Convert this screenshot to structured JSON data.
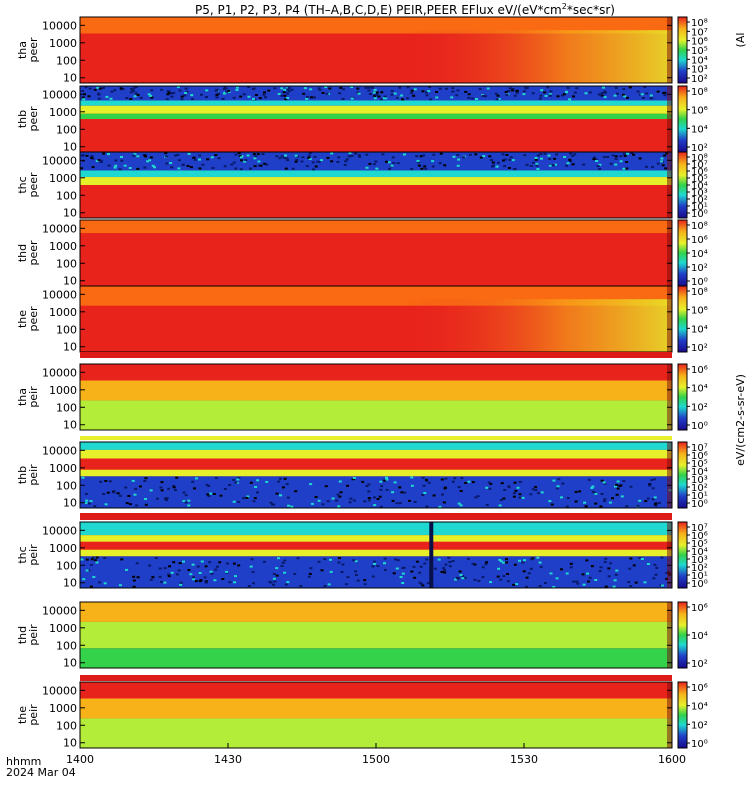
{
  "title_parts": [
    "P5, P1, P2, P3, P4 (TH–A,B,C,D,E) PEIR,PEER EFlux eV/(eV*cm",
    "2",
    "*sec*sr)"
  ],
  "footer": {
    "time_label": "hhmm",
    "date_label": "2024 Mar 04"
  },
  "chart_data": {
    "type": "heatmap",
    "title": "P5, P1, P2, P3, P4 (TH–A,B,C,D,E) PEIR,PEER EFlux eV/(eV*cm2*sec*sr)",
    "x_axis": {
      "ticks": [
        "1400",
        "1430",
        "1500",
        "1530",
        "1600"
      ],
      "range": [
        "1400",
        "1600"
      ],
      "label": "hhmm",
      "date": "2024 Mar 04"
    },
    "colorbar_label": "eV/(cm2-s-sr-eV)",
    "colorbar_label_fragment": "(Al",
    "panels": [
      {
        "id": "tha-peer",
        "label": [
          "tha",
          "peer"
        ],
        "y_ticks": [
          "10000",
          "1000",
          "100",
          "10"
        ],
        "y_range": [
          5,
          30000
        ],
        "cb_ticks": [
          "10⁸",
          "10⁷",
          "10⁶",
          "10⁵",
          "10⁴",
          "10³",
          "10²"
        ],
        "bands": [
          [
            0.0,
            0.25,
            "hot"
          ],
          [
            0.25,
            1.0,
            "red"
          ]
        ],
        "tail": "gradient"
      },
      {
        "id": "thb-peer",
        "label": [
          "thb",
          "peer"
        ],
        "y_ticks": [
          "10000",
          "1000",
          "100",
          "10"
        ],
        "y_range": [
          5,
          30000
        ],
        "cb_ticks": [
          "10⁸",
          "10⁶",
          "10⁴",
          "10²"
        ],
        "bands": [
          [
            0.0,
            0.22,
            "noise"
          ],
          [
            0.22,
            0.3,
            "cyan"
          ],
          [
            0.3,
            0.42,
            "yellow"
          ],
          [
            0.42,
            0.5,
            "green"
          ],
          [
            0.5,
            1.0,
            "red"
          ]
        ]
      },
      {
        "id": "thc-peer",
        "label": [
          "thc",
          "peer"
        ],
        "y_ticks": [
          "10000",
          "1000",
          "100",
          "10"
        ],
        "y_range": [
          5,
          30000
        ],
        "cb_ticks": [
          "10⁸",
          "10⁷",
          "10⁶",
          "10⁵",
          "10⁴",
          "10³",
          "10²",
          "10¹",
          "10⁰"
        ],
        "bands": [
          [
            0.0,
            0.28,
            "noise"
          ],
          [
            0.28,
            0.38,
            "cyan"
          ],
          [
            0.38,
            0.5,
            "yellow"
          ],
          [
            0.5,
            1.0,
            "red"
          ]
        ]
      },
      {
        "id": "thd-peer",
        "label": [
          "thd",
          "peer"
        ],
        "y_ticks": [
          "10000",
          "1000",
          "100",
          "10"
        ],
        "y_range": [
          5,
          30000
        ],
        "cb_ticks": [
          "10⁸",
          "10⁶",
          "10⁴",
          "10²",
          "10⁰"
        ],
        "bands": [
          [
            0.0,
            0.2,
            "hot"
          ],
          [
            0.2,
            1.0,
            "red"
          ]
        ]
      },
      {
        "id": "the-peer",
        "label": [
          "the",
          "peer"
        ],
        "y_ticks": [
          "10000",
          "1000",
          "100",
          "10"
        ],
        "y_range": [
          5,
          30000
        ],
        "cb_ticks": [
          "10⁸",
          "10⁶",
          "10⁴",
          "10²"
        ],
        "bands": [
          [
            0.0,
            0.3,
            "hot"
          ],
          [
            0.3,
            1.0,
            "red"
          ]
        ],
        "tail": "fade"
      },
      {
        "id": "tha-peir",
        "label": [
          "tha",
          "peir"
        ],
        "y_ticks": [
          "10000",
          "1000",
          "100",
          "10"
        ],
        "y_range": [
          5,
          30000
        ],
        "cb_ticks": [
          "10⁶",
          "10⁴",
          "10²",
          "10⁰"
        ],
        "bands": [
          [
            0.0,
            0.25,
            "red"
          ],
          [
            0.25,
            0.55,
            "orange"
          ],
          [
            0.55,
            1.0,
            "lightgreen"
          ]
        ]
      },
      {
        "id": "thb-peir",
        "label": [
          "thb",
          "peir"
        ],
        "y_ticks": [
          "10000",
          "1000",
          "100",
          "10"
        ],
        "y_range": [
          5,
          30000
        ],
        "cb_ticks": [
          "10⁷",
          "10⁶",
          "10⁵",
          "10⁴",
          "10³",
          "10²",
          "10¹",
          "10⁰"
        ],
        "bands": [
          [
            0.0,
            0.12,
            "cyan"
          ],
          [
            0.12,
            0.25,
            "yellow"
          ],
          [
            0.25,
            0.42,
            "red"
          ],
          [
            0.42,
            0.52,
            "yellow"
          ],
          [
            0.52,
            1.0,
            "noise"
          ]
        ]
      },
      {
        "id": "thc-peir",
        "label": [
          "thc",
          "peir"
        ],
        "y_ticks": [
          "10000",
          "1000",
          "100",
          "10"
        ],
        "y_range": [
          5,
          30000
        ],
        "cb_ticks": [
          "10⁷",
          "10⁶",
          "10⁵",
          "10⁴",
          "10³",
          "10²",
          "10¹",
          "10⁰"
        ],
        "bands": [
          [
            0.0,
            0.2,
            "cyan"
          ],
          [
            0.2,
            0.3,
            "yellow"
          ],
          [
            0.3,
            0.42,
            "red"
          ],
          [
            0.42,
            0.52,
            "yellow"
          ],
          [
            0.52,
            1.0,
            "noise"
          ]
        ],
        "marker_x": 0.59
      },
      {
        "id": "thd-peir",
        "label": [
          "thd",
          "peir"
        ],
        "y_ticks": [
          "10000",
          "1000",
          "100",
          "10"
        ],
        "y_range": [
          5,
          30000
        ],
        "cb_ticks": [
          "10⁶",
          "10⁴",
          "10²"
        ],
        "bands": [
          [
            0.0,
            0.3,
            "orange"
          ],
          [
            0.3,
            0.7,
            "lightgreen"
          ],
          [
            0.7,
            1.0,
            "green"
          ]
        ]
      },
      {
        "id": "the-peir",
        "label": [
          "the",
          "peir"
        ],
        "y_ticks": [
          "10000",
          "1000",
          "100",
          "10"
        ],
        "y_range": [
          5,
          30000
        ],
        "cb_ticks": [
          "10⁶",
          "10⁴",
          "10²",
          "10⁰"
        ],
        "bands": [
          [
            0.0,
            0.25,
            "red"
          ],
          [
            0.25,
            0.55,
            "orange"
          ],
          [
            0.55,
            1.0,
            "lightgreen"
          ]
        ]
      }
    ],
    "palette": {
      "red": "#e8231c",
      "hot": "#fa6a12",
      "orange": "#f7b21a",
      "yellow": "#e6f02a",
      "lightgreen": "#b4ec3a",
      "green": "#33d24a",
      "cyan": "#1fd8d0",
      "noise": "#1f3fc8",
      "noise_dark": "#0a1a6a",
      "gap_red": "#dd1b18",
      "frame": "#000000"
    }
  }
}
